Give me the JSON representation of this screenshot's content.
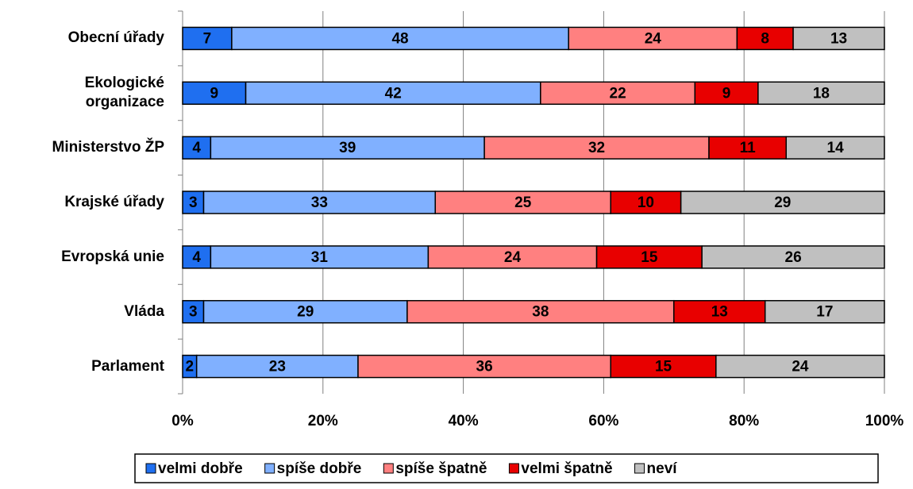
{
  "chart_data": {
    "type": "bar",
    "orientation": "horizontal",
    "stacked": true,
    "categories": [
      "Obecní úřady",
      "Ekologické organizace",
      "Ministerstvo ŽP",
      "Krajské úřady",
      "Evropská unie",
      "Vláda",
      "Parlament"
    ],
    "series": [
      {
        "name": "velmi dobře",
        "color": "#1f6ff0",
        "values": [
          7,
          9,
          4,
          3,
          4,
          3,
          2
        ]
      },
      {
        "name": "spíše dobře",
        "color": "#80b0ff",
        "values": [
          48,
          42,
          39,
          33,
          31,
          29,
          23
        ]
      },
      {
        "name": "spíše špatně",
        "color": "#ff8080",
        "values": [
          24,
          22,
          32,
          25,
          24,
          38,
          36
        ]
      },
      {
        "name": "velmi špatně",
        "color": "#e80000",
        "values": [
          8,
          9,
          11,
          10,
          15,
          13,
          15
        ]
      },
      {
        "name": "neví",
        "color": "#c0c0c0",
        "values": [
          13,
          18,
          14,
          29,
          26,
          17,
          24
        ]
      }
    ],
    "xlim": [
      0,
      100
    ],
    "xticks": [
      {
        "value": 0,
        "label": "0%"
      },
      {
        "value": 20,
        "label": "20%"
      },
      {
        "value": 40,
        "label": "40%"
      },
      {
        "value": 60,
        "label": "60%"
      },
      {
        "value": 80,
        "label": "80%"
      },
      {
        "value": 100,
        "label": "100%"
      }
    ],
    "grid": true,
    "legend": "bottom"
  }
}
